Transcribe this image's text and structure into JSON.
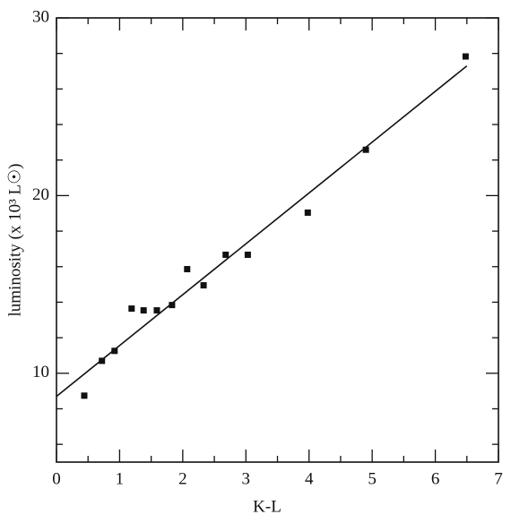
{
  "chart_data": {
    "type": "scatter",
    "x_label": "K-L",
    "y_label": "luminosity (x 10³ L☉)",
    "x": [
      0.44,
      0.72,
      0.92,
      1.19,
      1.38,
      1.59,
      1.83,
      2.07,
      2.33,
      2.68,
      3.03,
      3.98,
      4.9,
      6.48
    ],
    "values": [
      8.74,
      10.7,
      11.26,
      13.64,
      13.54,
      13.54,
      13.84,
      15.86,
      14.95,
      16.67,
      16.67,
      19.04,
      22.58,
      27.83
    ],
    "color": "#111111",
    "fit": {
      "x": [
        0,
        6.5
      ],
      "values": [
        8.7,
        27.3
      ]
    },
    "xlim": [
      0,
      7
    ],
    "ylim": [
      5,
      30
    ],
    "xticks": [
      0,
      1,
      2,
      3,
      4,
      5,
      6,
      7
    ],
    "yticks": [
      10,
      20,
      30
    ],
    "x_minor_ticks": [
      0.5,
      1.5,
      2.5,
      3.5,
      4.5,
      5.5,
      6.5
    ],
    "y_minor_ticks": [
      6,
      8,
      12,
      14,
      16,
      18,
      22,
      24,
      26,
      28
    ]
  }
}
